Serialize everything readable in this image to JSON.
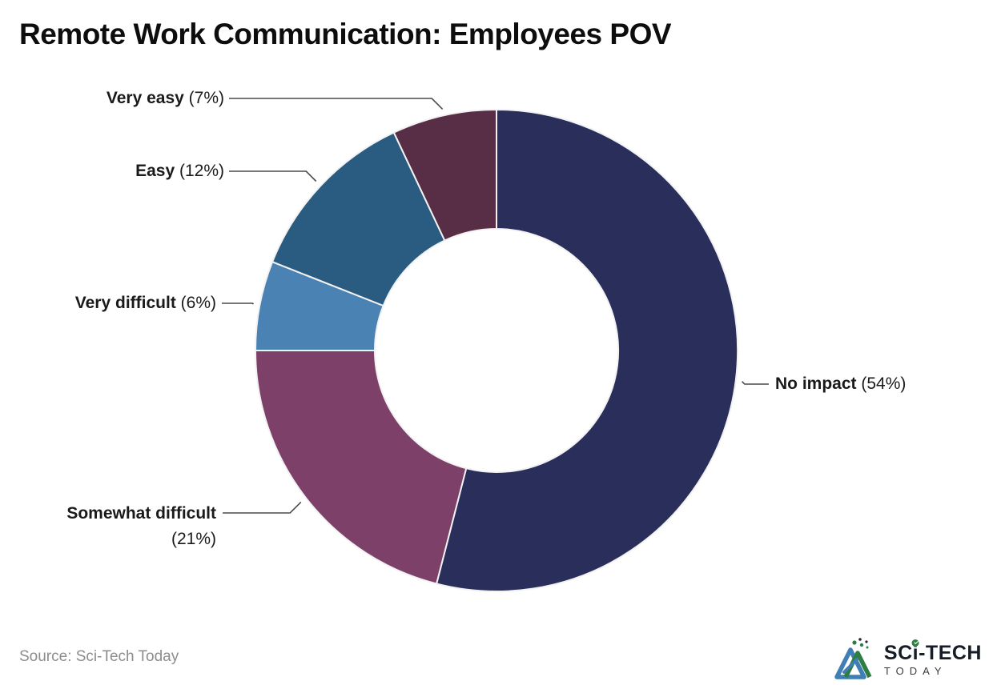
{
  "header": {
    "title": "Remote Work Communication: Employees POV"
  },
  "chart_data": {
    "type": "pie",
    "variant": "donut",
    "title": "Remote Work Communication: Employees POV",
    "start_angle_deg": 0,
    "direction": "clockwise",
    "units": "percent",
    "slices": [
      {
        "label": "No impact",
        "value": 54,
        "pct_label": "(54%)",
        "color": "#2a2e5a"
      },
      {
        "label": "Somewhat difficult",
        "value": 21,
        "pct_label": "(21%)",
        "color": "#7d4169"
      },
      {
        "label": "Very difficult",
        "value": 6,
        "pct_label": "(6%)",
        "color": "#4a83b3"
      },
      {
        "label": "Easy",
        "value": 12,
        "pct_label": "(12%)",
        "color": "#2a5b80"
      },
      {
        "label": "Very easy",
        "value": 7,
        "pct_label": "(7%)",
        "color": "#582d46"
      }
    ],
    "legend_position": "callout-labels",
    "grid": false
  },
  "footer": {
    "source_text": "Source: Sci-Tech Today"
  },
  "logo": {
    "name_prefix": "SC",
    "name_i": "i",
    "name_suffix": "-TECH",
    "tagline": "TODAY",
    "accent_green": "#2e7d42",
    "accent_blue": "#3f7fb6",
    "text_color": "#161d27"
  }
}
